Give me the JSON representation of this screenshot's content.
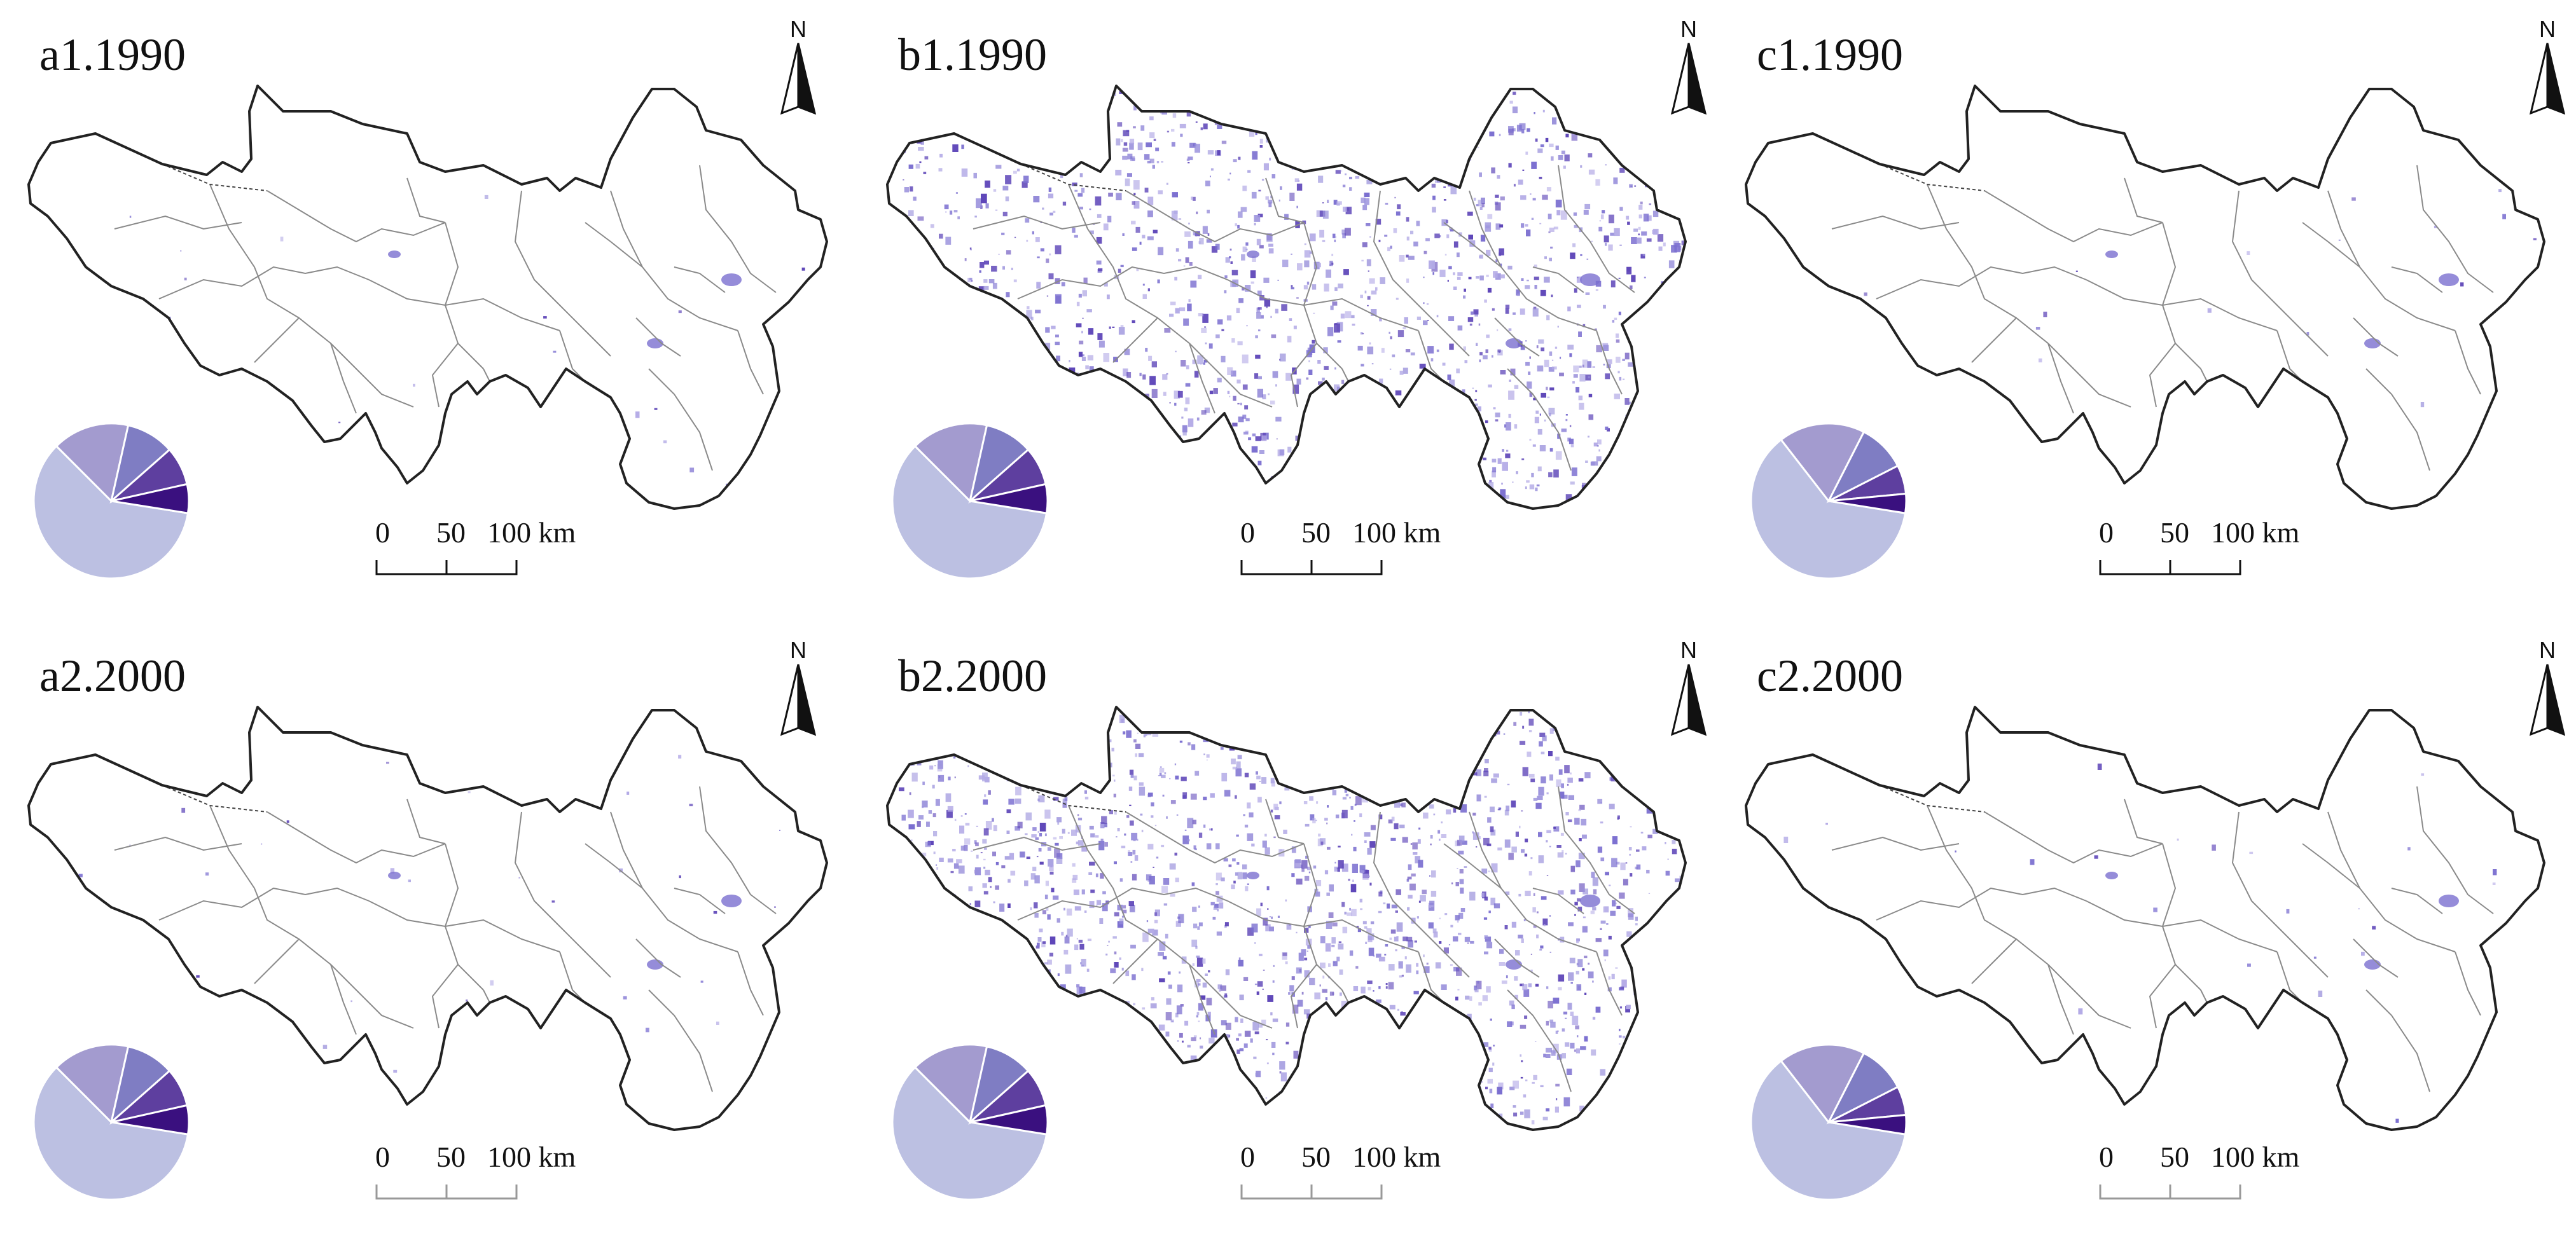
{
  "figure": {
    "panels": [
      {
        "label": "a1.1990",
        "row": 0,
        "col": 0,
        "density": 0.002,
        "pie": [
          0.6,
          0.16,
          0.1,
          0.08,
          0.06
        ]
      },
      {
        "label": "b1.1990",
        "row": 0,
        "col": 1,
        "density": 0.3,
        "pie": [
          0.6,
          0.16,
          0.1,
          0.08,
          0.06
        ]
      },
      {
        "label": "c1.1990",
        "row": 0,
        "col": 2,
        "density": 0.001,
        "pie": [
          0.62,
          0.18,
          0.1,
          0.06,
          0.04
        ]
      },
      {
        "label": "a2.2000",
        "row": 1,
        "col": 0,
        "density": 0.004,
        "pie": [
          0.6,
          0.16,
          0.1,
          0.08,
          0.06
        ]
      },
      {
        "label": "b2.2000",
        "row": 1,
        "col": 1,
        "density": 0.34,
        "pie": [
          0.6,
          0.16,
          0.1,
          0.08,
          0.06
        ]
      },
      {
        "label": "c2.2000",
        "row": 1,
        "col": 2,
        "density": 0.002,
        "pie": [
          0.62,
          0.18,
          0.1,
          0.06,
          0.04
        ]
      }
    ],
    "north_label": "N",
    "scale": {
      "ticks": [
        "0",
        "50",
        "100 km"
      ]
    },
    "pie_colors": [
      "#bcc0e2",
      "#a39bcf",
      "#7f7dc3",
      "#5e3f9f",
      "#3a107f"
    ],
    "patch_colors": [
      "#7b6fd0",
      "#9a91dc",
      "#5d45b8",
      "#b3aae6"
    ],
    "border_color": "#222222",
    "district_line_color": "#8a8a8a"
  }
}
